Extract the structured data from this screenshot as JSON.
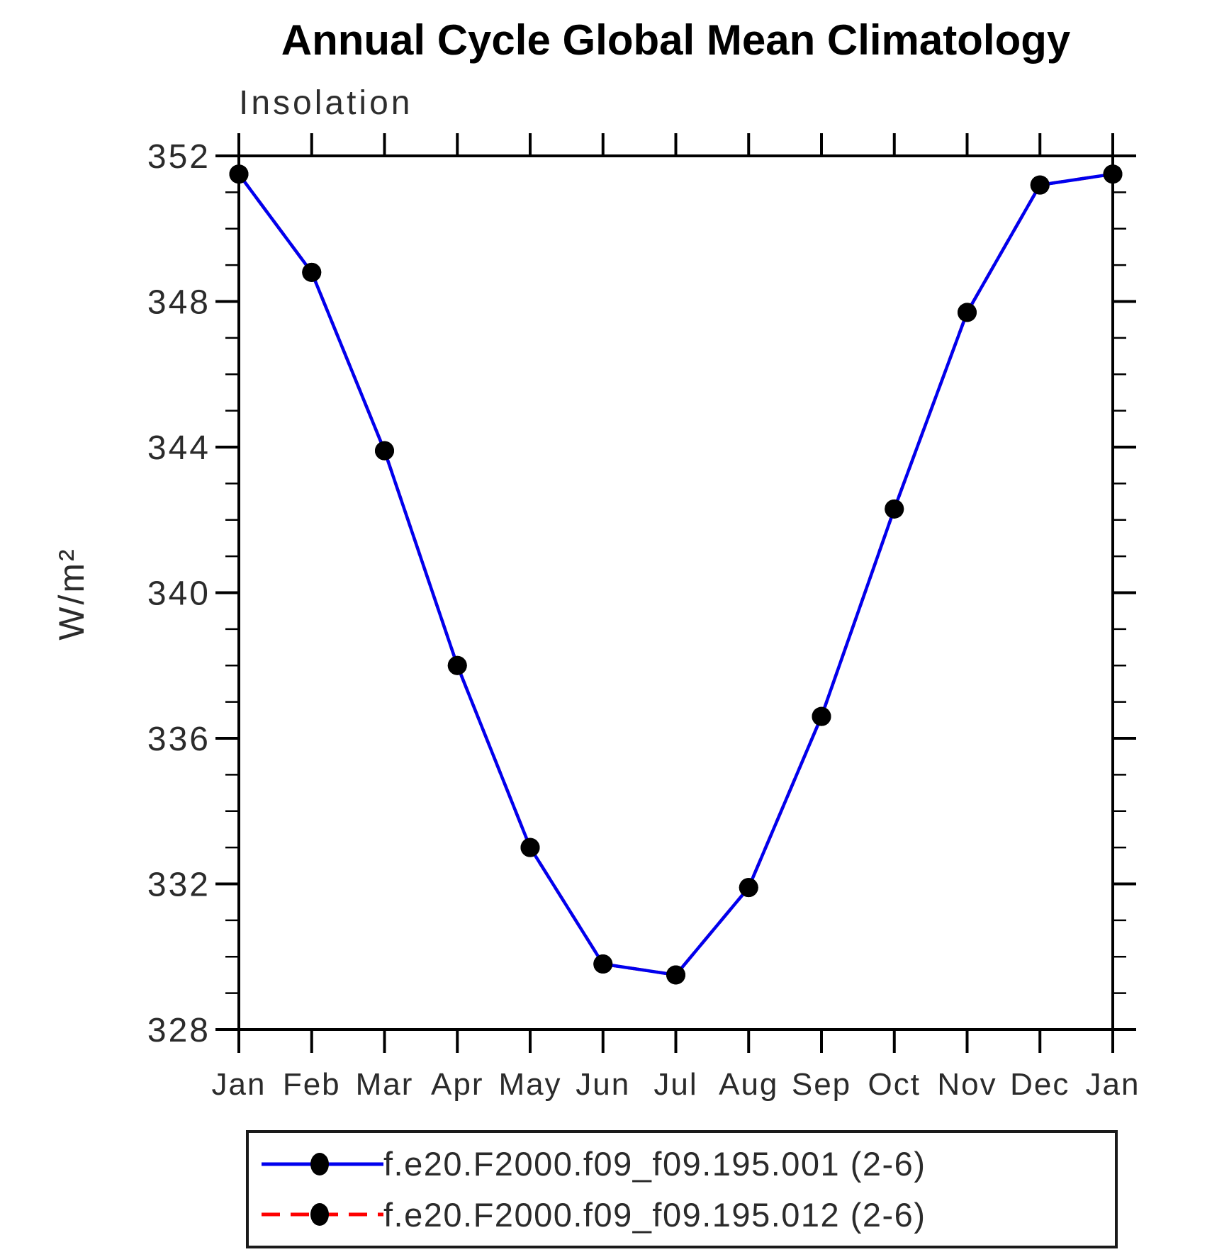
{
  "page": {
    "background": "#ffffff"
  },
  "chart": {
    "title": "Annual Cycle Global Mean Climatology",
    "subtitle_left": "Insolation",
    "ylabel": "W/m²"
  },
  "chart_data": {
    "type": "line",
    "title": "Annual Cycle Global Mean Climatology",
    "subtitle": "Insolation",
    "ylabel": "W/m²",
    "x_categories": [
      "Jan",
      "Feb",
      "Mar",
      "Apr",
      "May",
      "Jun",
      "Jul",
      "Aug",
      "Sep",
      "Oct",
      "Nov",
      "Dec",
      "Jan"
    ],
    "ylim": [
      328,
      352
    ],
    "ytick_major_interval": 4,
    "ytick_minor_interval": 1,
    "ytick_labels": [
      "328",
      "332",
      "336",
      "340",
      "344",
      "348",
      "352"
    ],
    "grid": false,
    "tick_style": "outward-all-four-sides",
    "legend_position": "bottom",
    "axis_color": "#000000",
    "series": [
      {
        "name": "f.e20.F2000.f09_f09.195.001 (2-6)",
        "color": "#0000ee",
        "line_style": "solid",
        "marker": "filled-circle",
        "marker_color": "#000000",
        "values": [
          351.5,
          348.8,
          343.9,
          338.0,
          333.0,
          329.8,
          329.5,
          331.9,
          336.6,
          342.3,
          347.7,
          351.2,
          351.5
        ]
      },
      {
        "name": "f.e20.F2000.f09_f09.195.012 (2-6)",
        "color": "#fe0000",
        "line_style": "dashed",
        "marker": "filled-circle",
        "marker_color": "#000000",
        "visible_in_plot": false,
        "values": [
          351.5,
          348.8,
          343.9,
          338.0,
          333.0,
          329.8,
          329.5,
          331.9,
          336.6,
          342.3,
          347.7,
          351.2,
          351.5
        ]
      }
    ]
  },
  "legend": {
    "entries": [
      {
        "label": "f.e20.F2000.f09_f09.195.001 (2-6)",
        "color": "#0000ee",
        "style": "solid",
        "marker": "black-dot"
      },
      {
        "label": "f.e20.F2000.f09_f09.195.012 (2-6)",
        "color": "#fe0000",
        "style": "dashed",
        "marker": "black-dot"
      }
    ]
  }
}
